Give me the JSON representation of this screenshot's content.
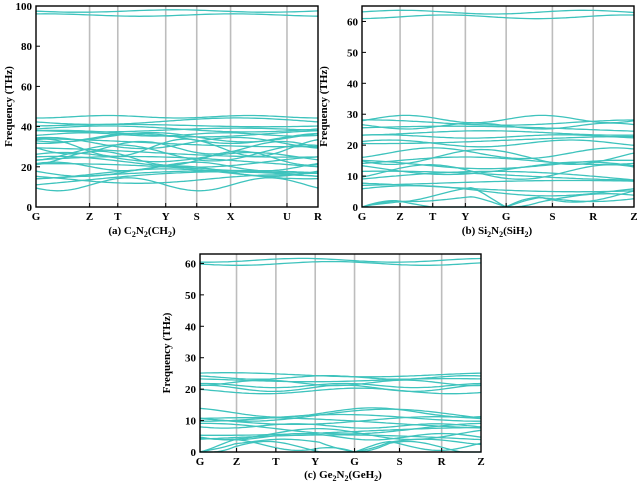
{
  "chart_data": [
    {
      "type": "line",
      "id": "a",
      "caption": {
        "prefix": "(a) C",
        "sub1": "2",
        "mid": "N",
        "sub2": "2",
        "rest": "(CH",
        "sub3": "2",
        "tail": ")"
      },
      "ylabel": "Frequency (THz)",
      "ylim": [
        0,
        100
      ],
      "yticks": [
        0,
        20,
        40,
        60,
        80,
        100
      ],
      "kpoints": [
        "G",
        "Z",
        "T",
        "Y",
        "S",
        "X",
        "U",
        "R"
      ],
      "kfrac": [
        0,
        0.19,
        0.29,
        0.46,
        0.57,
        0.69,
        0.89,
        1
      ],
      "grid": "vertical at k-points",
      "line_color": "#3ec3bd",
      "flat_bands": [
        95.5,
        97.5
      ],
      "band_groups": [
        {
          "start": 0,
          "end": 28,
          "count": 12,
          "lo": 12,
          "hi": 40
        },
        {
          "start": 5,
          "end": 30,
          "count": 10,
          "lo": 10,
          "hi": 36
        },
        {
          "start": 35,
          "end": 46,
          "count": 5,
          "lo": 35,
          "hi": 46
        }
      ]
    },
    {
      "type": "line",
      "id": "b",
      "caption": {
        "prefix": "(b) Si",
        "sub1": "2",
        "mid": "N",
        "sub2": "2",
        "rest": "(SiH",
        "sub3": "2",
        "tail": ")"
      },
      "ylabel": "Frequency (THz)",
      "ylim": [
        0,
        65
      ],
      "yticks": [
        0,
        10,
        20,
        30,
        40,
        50,
        60
      ],
      "kpoints": [
        "G",
        "Z",
        "T",
        "Y",
        "G",
        "S",
        "R",
        "Z"
      ],
      "kfrac": [
        0,
        0.14,
        0.26,
        0.38,
        0.53,
        0.7,
        0.85,
        1
      ],
      "grid": "vertical at k-points",
      "line_color": "#3ec3bd",
      "flat_bands": [
        61.5,
        63
      ],
      "band_groups": [
        {
          "start": 0,
          "end": 18,
          "count": 14,
          "lo": 1,
          "hi": 18
        },
        {
          "start": 20,
          "end": 29,
          "count": 8,
          "lo": 20,
          "hi": 29
        }
      ]
    },
    {
      "type": "line",
      "id": "c",
      "caption": {
        "prefix": "(c) Ge",
        "sub1": "2",
        "mid": "N",
        "sub2": "2",
        "rest": "(GeH",
        "sub3": "2",
        "tail": ")"
      },
      "ylabel": "Frequency (THz)",
      "ylim": [
        0,
        63
      ],
      "yticks": [
        0,
        10,
        20,
        30,
        40,
        50,
        60
      ],
      "kpoints": [
        "G",
        "Z",
        "T",
        "Y",
        "G",
        "S",
        "R",
        "Z"
      ],
      "kfrac": [
        0,
        0.13,
        0.27,
        0.41,
        0.55,
        0.71,
        0.86,
        1
      ],
      "grid": "vertical at k-points",
      "line_color": "#3ec3bd",
      "flat_bands": [
        60,
        61
      ],
      "band_groups": [
        {
          "start": 0,
          "end": 13,
          "count": 14,
          "lo": 1,
          "hi": 13
        },
        {
          "start": 19,
          "end": 25,
          "count": 7,
          "lo": 19,
          "hi": 25
        }
      ]
    }
  ]
}
